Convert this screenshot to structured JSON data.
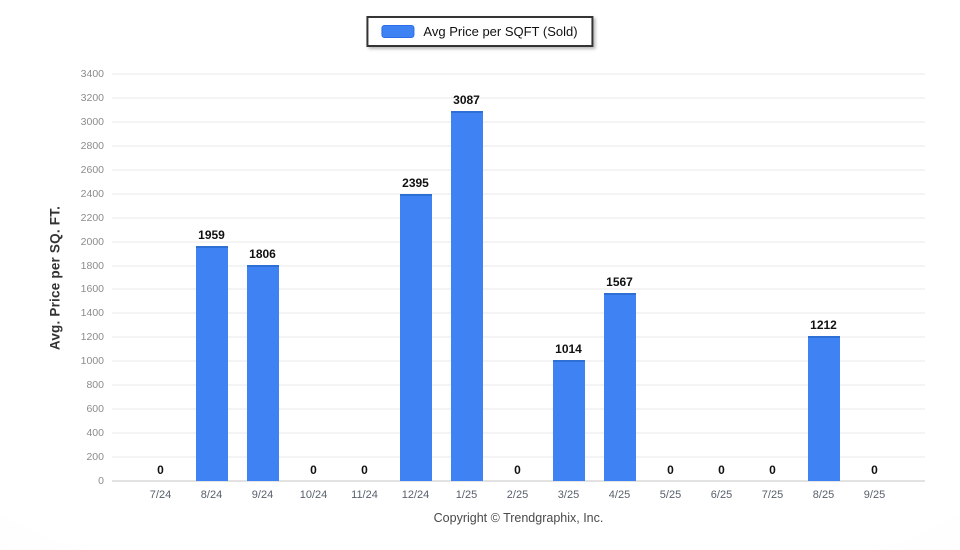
{
  "legend": {
    "label": "Avg Price per SQFT (Sold)",
    "swatch_color": "#3e82f4"
  },
  "footer": {
    "copyright": "Copyright © Trendgraphix, Inc."
  },
  "chart_data": {
    "type": "bar",
    "title": "",
    "xlabel": "",
    "ylabel": "Avg. Price per SQ. FT.",
    "categories": [
      "7/24",
      "8/24",
      "9/24",
      "10/24",
      "11/24",
      "12/24",
      "1/25",
      "2/25",
      "3/25",
      "4/25",
      "5/25",
      "6/25",
      "7/25",
      "8/25",
      "9/25"
    ],
    "series": [
      {
        "name": "Avg Price per SQFT (Sold)",
        "values": [
          0,
          1959,
          1806,
          0,
          0,
          2395,
          3087,
          0,
          1014,
          1567,
          0,
          0,
          0,
          1212,
          0
        ]
      }
    ],
    "ylim": [
      0,
      3400
    ],
    "yticks": [
      0,
      200,
      400,
      600,
      800,
      1000,
      1200,
      1400,
      1600,
      1800,
      2000,
      2200,
      2400,
      2600,
      2800,
      3000,
      3200,
      3400
    ],
    "grid": "horizontal",
    "legend_position": "top-center",
    "bar_color": "#3e82f4",
    "value_labels": true
  }
}
